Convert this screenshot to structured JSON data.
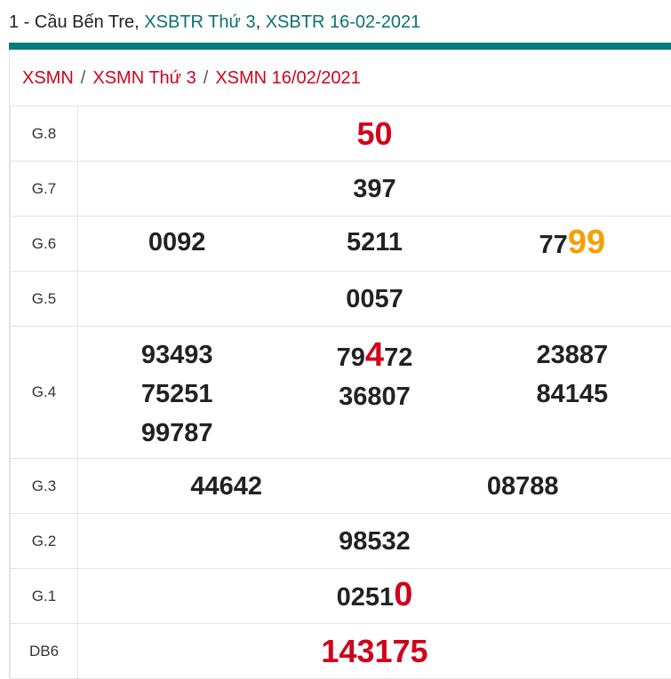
{
  "header": {
    "prefix": "1 - Cầu Bến Tre, ",
    "link1": "XSBTR Thứ 3",
    "comma": ", ",
    "link2": "XSBTR 16-02-2021"
  },
  "breadcrumb": {
    "items": [
      "XSMN",
      "XSMN Thứ 3",
      "XSMN 16/02/2021"
    ],
    "separator": "/"
  },
  "colors": {
    "accent": "#067b7e",
    "link": "#0b7072",
    "red": "#d0021b",
    "orange": "#f5a000"
  },
  "results": {
    "g8": {
      "label": "G.8",
      "value": "50"
    },
    "g7": {
      "label": "G.7",
      "value": "397"
    },
    "g6": {
      "label": "G.6",
      "values": [
        {
          "a": "0092",
          "h": "",
          "b": ""
        },
        {
          "a": "5211",
          "h": "",
          "b": ""
        },
        {
          "a": "77",
          "h": "99",
          "b": ""
        }
      ]
    },
    "g5": {
      "label": "G.5",
      "value": "0057"
    },
    "g4": {
      "label": "G.4",
      "col1": [
        {
          "a": "93493",
          "h": "",
          "b": ""
        },
        {
          "a": "75251",
          "h": "",
          "b": ""
        },
        {
          "a": "99787",
          "h": "",
          "b": ""
        }
      ],
      "col2": [
        {
          "a": "79",
          "h": "4",
          "b": "72"
        },
        {
          "a": "36807",
          "h": "",
          "b": ""
        }
      ],
      "col3": [
        {
          "a": "23887",
          "h": "",
          "b": ""
        },
        {
          "a": "84145",
          "h": "",
          "b": ""
        }
      ]
    },
    "g3": {
      "label": "G.3",
      "values": [
        "44642",
        "08788"
      ]
    },
    "g2": {
      "label": "G.2",
      "value": "98532"
    },
    "g1": {
      "label": "G.1",
      "a": "0251",
      "h": "0"
    },
    "db": {
      "label": "DB6",
      "value": "143175"
    }
  }
}
